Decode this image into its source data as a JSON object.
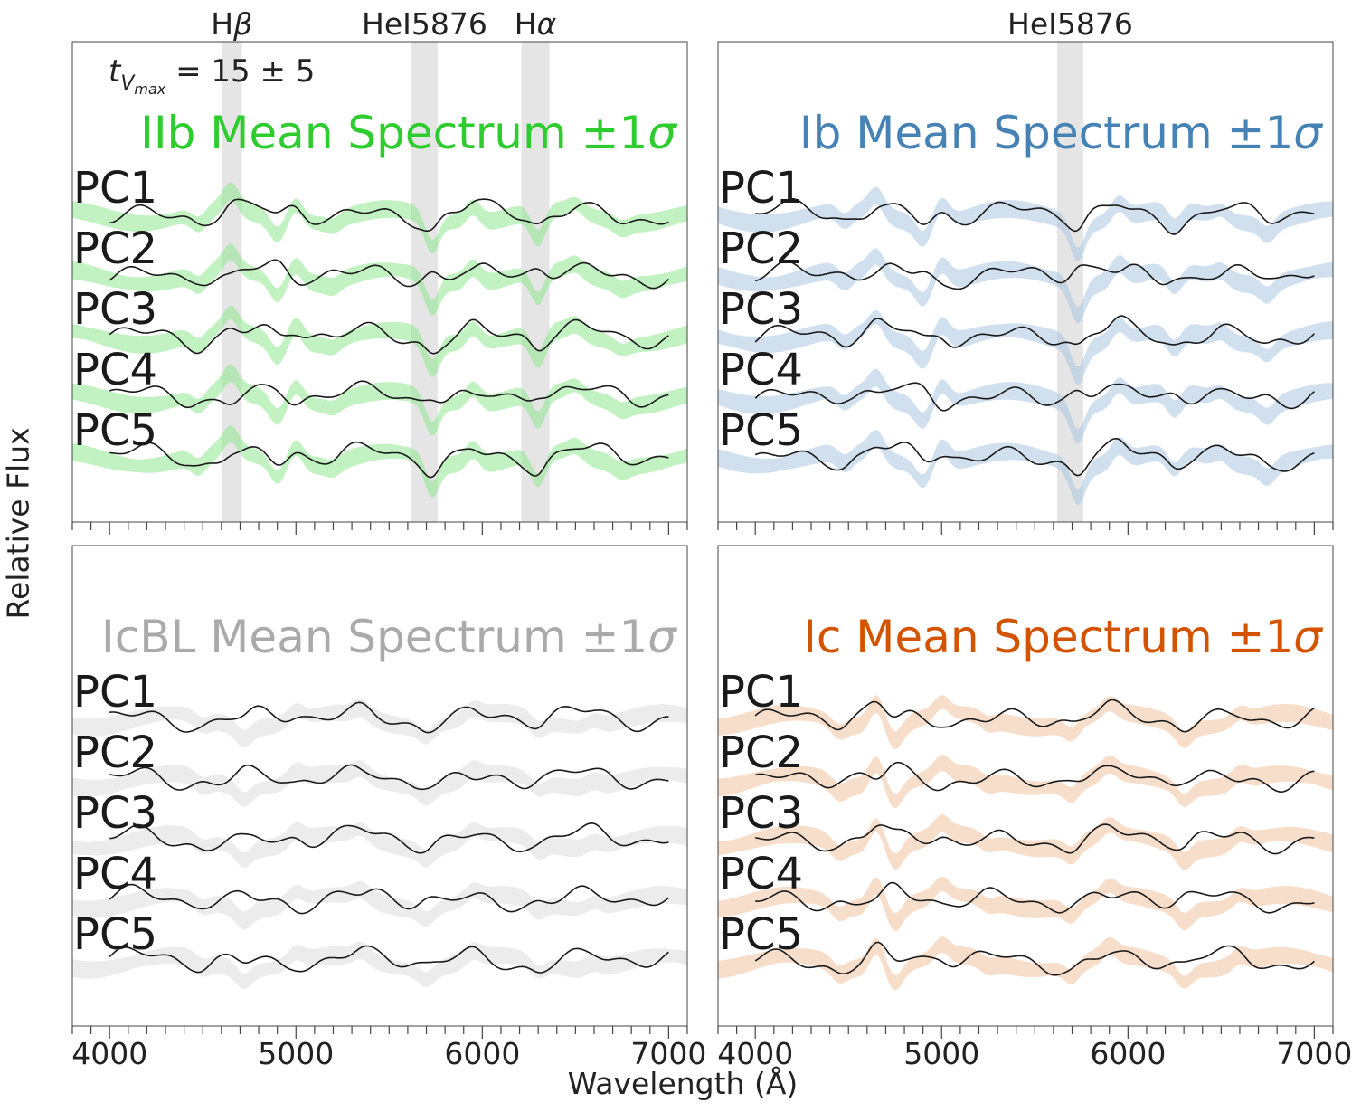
{
  "figure": {
    "xlabel": "Wavelength (Å)",
    "ylabel": "Relative Flux",
    "time_annotation": "t_Vmax = 15 ± 5"
  },
  "chart_data": [
    {
      "type": "line",
      "title": "IIb Mean Spectrum ±1σ",
      "color": "#2ecc2e",
      "band_color": "#90e890",
      "xlim": [
        3800,
        7100
      ],
      "xticks": [
        4000,
        5000,
        6000,
        7000
      ],
      "show_xtick_labels": false,
      "ytick_labels": "none",
      "line_marks": [
        {
          "label": "Hβ",
          "range": [
            4600,
            4710
          ]
        },
        {
          "label": "HeI5876",
          "range": [
            5620,
            5760
          ]
        },
        {
          "label": "Hα",
          "range": [
            6210,
            6360
          ]
        }
      ],
      "series": [
        {
          "name": "PC1",
          "x_range": [
            4000,
            7000
          ]
        },
        {
          "name": "PC2",
          "x_range": [
            4000,
            7000
          ]
        },
        {
          "name": "PC3",
          "x_range": [
            4000,
            7000
          ]
        },
        {
          "name": "PC4",
          "x_range": [
            4000,
            7000
          ]
        },
        {
          "name": "PC5",
          "x_range": [
            4000,
            7000
          ]
        }
      ],
      "features": [
        [
          4480,
          -0.6
        ],
        [
          4650,
          0.9
        ],
        [
          4900,
          -0.8
        ],
        [
          5000,
          0.9
        ],
        [
          5200,
          -0.3
        ],
        [
          5730,
          -1.5
        ],
        [
          5950,
          0.8
        ],
        [
          6300,
          -1.4
        ],
        [
          6500,
          0.4
        ],
        [
          6750,
          -0.3
        ]
      ]
    },
    {
      "type": "line",
      "title": "Ib Mean Spectrum ±1σ",
      "color": "#4682b4",
      "band_color": "#a9c6e0",
      "xlim": [
        3800,
        7100
      ],
      "xticks": [
        4000,
        5000,
        6000,
        7000
      ],
      "show_xtick_labels": false,
      "ytick_labels": "none",
      "line_marks": [
        {
          "label": "HeI5876",
          "range": [
            5620,
            5760
          ]
        }
      ],
      "series": [
        {
          "name": "PC1",
          "x_range": [
            4000,
            7000
          ]
        },
        {
          "name": "PC2",
          "x_range": [
            4000,
            7000
          ]
        },
        {
          "name": "PC3",
          "x_range": [
            4000,
            7000
          ]
        },
        {
          "name": "PC4",
          "x_range": [
            4000,
            7000
          ]
        },
        {
          "name": "PC5",
          "x_range": [
            4000,
            7000
          ]
        }
      ],
      "features": [
        [
          4480,
          -0.6
        ],
        [
          4650,
          0.9
        ],
        [
          4900,
          -0.8
        ],
        [
          5000,
          0.9
        ],
        [
          5730,
          -1.6
        ],
        [
          5950,
          0.8
        ],
        [
          6250,
          -0.9
        ],
        [
          6500,
          0.4
        ],
        [
          6750,
          -0.6
        ]
      ]
    },
    {
      "type": "line",
      "title": "IcBL Mean Spectrum ±1σ",
      "color": "#aaaaaa",
      "band_color": "#dddddd",
      "xlim": [
        3800,
        7100
      ],
      "xticks": [
        4000,
        5000,
        6000,
        7000
      ],
      "show_xtick_labels": true,
      "ytick_labels": "none",
      "line_marks": [],
      "series": [
        {
          "name": "PC1",
          "x_range": [
            4000,
            7000
          ]
        },
        {
          "name": "PC2",
          "x_range": [
            4000,
            7000
          ]
        },
        {
          "name": "PC3",
          "x_range": [
            4000,
            7000
          ]
        },
        {
          "name": "PC4",
          "x_range": [
            4000,
            7000
          ]
        },
        {
          "name": "PC5",
          "x_range": [
            4000,
            7000
          ]
        }
      ],
      "features": [
        [
          4500,
          -0.4
        ],
        [
          4720,
          -0.6
        ],
        [
          5000,
          0.5
        ],
        [
          5350,
          0.4
        ],
        [
          5700,
          -0.5
        ],
        [
          5950,
          0.4
        ],
        [
          6300,
          -0.5
        ],
        [
          6600,
          0.3
        ]
      ]
    },
    {
      "type": "line",
      "title": "Ic Mean Spectrum ±1σ",
      "color": "#d35400",
      "band_color": "#f0c2a0",
      "xlim": [
        3800,
        7100
      ],
      "xticks": [
        4000,
        5000,
        6000,
        7000
      ],
      "show_xtick_labels": true,
      "ytick_labels": "none",
      "line_marks": [],
      "series": [
        {
          "name": "PC1",
          "x_range": [
            4000,
            7000
          ]
        },
        {
          "name": "PC2",
          "x_range": [
            4000,
            7000
          ]
        },
        {
          "name": "PC3",
          "x_range": [
            4000,
            7000
          ]
        },
        {
          "name": "PC4",
          "x_range": [
            4000,
            7000
          ]
        },
        {
          "name": "PC5",
          "x_range": [
            4000,
            7000
          ]
        }
      ],
      "features": [
        [
          4450,
          -0.5
        ],
        [
          4650,
          1.2
        ],
        [
          4750,
          -0.8
        ],
        [
          5000,
          0.6
        ],
        [
          5250,
          -0.3
        ],
        [
          5700,
          -0.6
        ],
        [
          5900,
          0.5
        ],
        [
          6300,
          -0.7
        ],
        [
          6600,
          0.4
        ]
      ]
    }
  ]
}
